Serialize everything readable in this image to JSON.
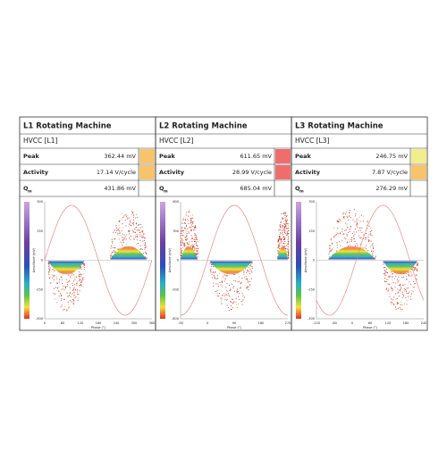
{
  "panels": [
    {
      "title": "L1 Rotating Machine",
      "subtitle": "HVCC [L1]",
      "rows": [
        {
          "label": "Peak",
          "value": "362.44 mV",
          "status": "#f7c46c"
        },
        {
          "label": "Activity",
          "value": "17.14 V/cycle",
          "status": "#f7c46c"
        },
        {
          "label": "Q",
          "subscript": "m",
          "value": "431.86 mV"
        }
      ],
      "plot": {
        "x_label": "Phase (°)",
        "y_label": "Amplitude (mV)",
        "xticks": [
          "0",
          "60",
          "120",
          "180",
          "240",
          "300",
          "360"
        ],
        "yticks": [
          "500",
          "250",
          "0",
          "-250",
          "-500"
        ]
      }
    },
    {
      "title": "L2 Rotating Machine",
      "subtitle": "HVCC [L2]",
      "rows": [
        {
          "label": "Peak",
          "value": "611.65 mV",
          "status": "#ee6e6e"
        },
        {
          "label": "Activity",
          "value": "28.99 V/cycle",
          "status": "#ee6e6e"
        },
        {
          "label": "Q",
          "subscript": "m",
          "value": "685.04 mV"
        }
      ],
      "plot": {
        "x_label": "Phase (°)",
        "y_label": "Amplitude (mV)",
        "xticks": [
          "-90",
          "0",
          "90",
          "180",
          "270"
        ],
        "yticks": [
          "600",
          "300",
          "0",
          "-300",
          "-600"
        ]
      }
    },
    {
      "title": "L3 Rotating Machine",
      "subtitle": "HVCC [L3]",
      "rows": [
        {
          "label": "Peak",
          "value": "246.75 mV",
          "status": "#f2ee8c"
        },
        {
          "label": "Activity",
          "value": "7.87 V/cycle",
          "status": "#f7c46c"
        },
        {
          "label": "Q",
          "subscript": "m",
          "value": "276.29 mV"
        }
      ],
      "plot": {
        "x_label": "Phase (°)",
        "y_label": "Amplitude (mV)",
        "xticks": [
          "-120",
          "-60",
          "0",
          "60",
          "120",
          "180",
          "240"
        ],
        "yticks": [
          "300",
          "150",
          "0",
          "-150",
          "-300"
        ]
      }
    }
  ]
}
